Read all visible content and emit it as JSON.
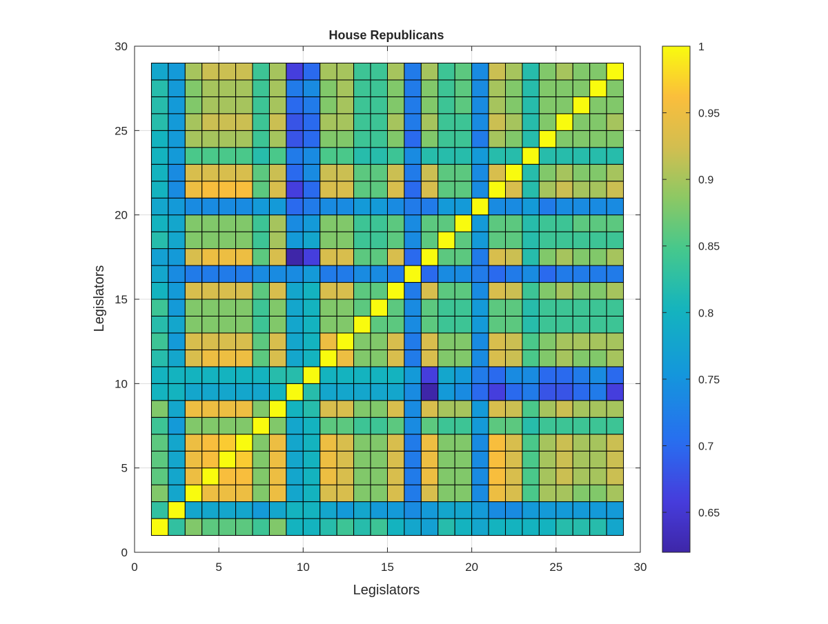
{
  "chart_data": {
    "type": "heatmap",
    "title": "House Republicans",
    "xlabel": "Legislators",
    "ylabel": "Legislators",
    "xlim": [
      0,
      30
    ],
    "ylim": [
      0,
      30
    ],
    "xticks": [
      "0",
      "5",
      "10",
      "15",
      "20",
      "25",
      "30"
    ],
    "yticks": [
      "0",
      "5",
      "10",
      "15",
      "20",
      "25",
      "30"
    ],
    "grid": true,
    "colormap": "parula",
    "colorbar": {
      "range": [
        0.62,
        1.0
      ],
      "ticks": [
        "0.65",
        "0.7",
        "0.75",
        "0.8",
        "0.85",
        "0.9",
        "0.95",
        "1"
      ]
    },
    "n": 28,
    "cells_note_omitted": true,
    "matrix": [
      [
        1.0,
        0.83,
        0.88,
        0.86,
        0.86,
        0.86,
        0.84,
        0.88,
        0.8,
        0.8,
        0.82,
        0.84,
        0.82,
        0.84,
        0.8,
        0.78,
        0.77,
        0.82,
        0.8,
        0.78,
        0.8,
        0.8,
        0.8,
        0.8,
        0.82,
        0.82,
        0.82,
        0.78
      ],
      [
        0.83,
        1.0,
        0.78,
        0.78,
        0.78,
        0.78,
        0.76,
        0.78,
        0.8,
        0.8,
        0.78,
        0.76,
        0.78,
        0.76,
        0.76,
        0.74,
        0.76,
        0.78,
        0.78,
        0.76,
        0.74,
        0.74,
        0.76,
        0.76,
        0.76,
        0.76,
        0.76,
        0.76
      ],
      [
        0.88,
        0.78,
        1.0,
        0.95,
        0.95,
        0.95,
        0.88,
        0.95,
        0.78,
        0.8,
        0.93,
        0.93,
        0.88,
        0.88,
        0.93,
        0.72,
        0.93,
        0.88,
        0.88,
        0.74,
        0.95,
        0.93,
        0.85,
        0.9,
        0.9,
        0.88,
        0.88,
        0.9
      ],
      [
        0.86,
        0.78,
        0.95,
        1.0,
        0.96,
        0.96,
        0.88,
        0.95,
        0.78,
        0.8,
        0.95,
        0.93,
        0.88,
        0.88,
        0.93,
        0.72,
        0.95,
        0.88,
        0.88,
        0.74,
        0.96,
        0.93,
        0.85,
        0.9,
        0.92,
        0.9,
        0.9,
        0.92
      ],
      [
        0.86,
        0.78,
        0.95,
        0.96,
        1.0,
        0.97,
        0.88,
        0.95,
        0.78,
        0.8,
        0.95,
        0.93,
        0.88,
        0.88,
        0.93,
        0.72,
        0.95,
        0.88,
        0.88,
        0.74,
        0.96,
        0.93,
        0.85,
        0.9,
        0.92,
        0.9,
        0.9,
        0.92
      ],
      [
        0.86,
        0.78,
        0.95,
        0.96,
        0.97,
        1.0,
        0.88,
        0.95,
        0.78,
        0.8,
        0.95,
        0.93,
        0.88,
        0.88,
        0.93,
        0.72,
        0.95,
        0.88,
        0.88,
        0.74,
        0.96,
        0.93,
        0.85,
        0.9,
        0.92,
        0.9,
        0.9,
        0.92
      ],
      [
        0.84,
        0.76,
        0.88,
        0.88,
        0.88,
        0.88,
        1.0,
        0.88,
        0.78,
        0.8,
        0.86,
        0.86,
        0.84,
        0.84,
        0.86,
        0.74,
        0.86,
        0.84,
        0.84,
        0.76,
        0.86,
        0.86,
        0.82,
        0.84,
        0.84,
        0.84,
        0.84,
        0.84
      ],
      [
        0.88,
        0.78,
        0.95,
        0.95,
        0.95,
        0.95,
        0.88,
        1.0,
        0.8,
        0.82,
        0.93,
        0.93,
        0.88,
        0.88,
        0.93,
        0.74,
        0.93,
        0.9,
        0.9,
        0.76,
        0.93,
        0.92,
        0.85,
        0.9,
        0.92,
        0.9,
        0.9,
        0.9
      ],
      [
        0.8,
        0.8,
        0.78,
        0.78,
        0.78,
        0.78,
        0.78,
        0.8,
        1.0,
        0.82,
        0.78,
        0.78,
        0.78,
        0.78,
        0.78,
        0.74,
        0.62,
        0.76,
        0.74,
        0.7,
        0.66,
        0.7,
        0.72,
        0.68,
        0.68,
        0.7,
        0.72,
        0.66
      ],
      [
        0.8,
        0.8,
        0.8,
        0.8,
        0.8,
        0.8,
        0.8,
        0.82,
        0.82,
        1.0,
        0.8,
        0.8,
        0.8,
        0.8,
        0.8,
        0.76,
        0.66,
        0.78,
        0.76,
        0.72,
        0.7,
        0.74,
        0.74,
        0.7,
        0.7,
        0.72,
        0.74,
        0.7
      ],
      [
        0.82,
        0.78,
        0.93,
        0.95,
        0.95,
        0.95,
        0.86,
        0.93,
        0.78,
        0.8,
        1.0,
        0.95,
        0.88,
        0.88,
        0.93,
        0.72,
        0.93,
        0.88,
        0.88,
        0.74,
        0.93,
        0.92,
        0.85,
        0.88,
        0.9,
        0.88,
        0.88,
        0.9
      ],
      [
        0.84,
        0.76,
        0.93,
        0.93,
        0.93,
        0.93,
        0.86,
        0.93,
        0.78,
        0.8,
        0.95,
        1.0,
        0.88,
        0.88,
        0.93,
        0.72,
        0.93,
        0.88,
        0.88,
        0.74,
        0.93,
        0.92,
        0.85,
        0.88,
        0.9,
        0.9,
        0.9,
        0.9
      ],
      [
        0.82,
        0.78,
        0.88,
        0.88,
        0.88,
        0.88,
        0.84,
        0.88,
        0.78,
        0.8,
        0.88,
        0.88,
        1.0,
        0.86,
        0.86,
        0.74,
        0.86,
        0.84,
        0.84,
        0.76,
        0.86,
        0.86,
        0.82,
        0.84,
        0.84,
        0.84,
        0.84,
        0.84
      ],
      [
        0.84,
        0.76,
        0.88,
        0.88,
        0.88,
        0.88,
        0.84,
        0.88,
        0.78,
        0.8,
        0.88,
        0.88,
        0.86,
        1.0,
        0.86,
        0.74,
        0.86,
        0.84,
        0.84,
        0.76,
        0.86,
        0.86,
        0.82,
        0.84,
        0.84,
        0.84,
        0.84,
        0.84
      ],
      [
        0.8,
        0.76,
        0.93,
        0.93,
        0.93,
        0.93,
        0.86,
        0.93,
        0.78,
        0.8,
        0.93,
        0.93,
        0.86,
        0.86,
        1.0,
        0.72,
        0.93,
        0.86,
        0.86,
        0.74,
        0.93,
        0.92,
        0.84,
        0.88,
        0.9,
        0.88,
        0.88,
        0.9
      ],
      [
        0.78,
        0.74,
        0.72,
        0.72,
        0.72,
        0.72,
        0.74,
        0.74,
        0.74,
        0.76,
        0.72,
        0.72,
        0.74,
        0.74,
        0.72,
        1.0,
        0.7,
        0.74,
        0.74,
        0.72,
        0.7,
        0.72,
        0.74,
        0.7,
        0.72,
        0.72,
        0.72,
        0.72
      ],
      [
        0.77,
        0.76,
        0.93,
        0.95,
        0.95,
        0.95,
        0.86,
        0.93,
        0.62,
        0.66,
        0.93,
        0.93,
        0.86,
        0.86,
        0.93,
        0.7,
        1.0,
        0.86,
        0.86,
        0.72,
        0.93,
        0.92,
        0.82,
        0.88,
        0.9,
        0.88,
        0.88,
        0.9
      ],
      [
        0.82,
        0.78,
        0.88,
        0.88,
        0.88,
        0.88,
        0.84,
        0.9,
        0.76,
        0.78,
        0.88,
        0.88,
        0.84,
        0.84,
        0.86,
        0.74,
        0.86,
        1.0,
        0.86,
        0.76,
        0.86,
        0.86,
        0.82,
        0.84,
        0.84,
        0.84,
        0.84,
        0.84
      ],
      [
        0.8,
        0.78,
        0.88,
        0.88,
        0.88,
        0.88,
        0.84,
        0.9,
        0.74,
        0.76,
        0.88,
        0.88,
        0.84,
        0.84,
        0.86,
        0.74,
        0.86,
        0.86,
        1.0,
        0.76,
        0.86,
        0.86,
        0.82,
        0.84,
        0.84,
        0.86,
        0.86,
        0.86
      ],
      [
        0.78,
        0.76,
        0.74,
        0.74,
        0.74,
        0.74,
        0.76,
        0.76,
        0.7,
        0.72,
        0.74,
        0.74,
        0.76,
        0.76,
        0.74,
        0.72,
        0.72,
        0.76,
        0.76,
        1.0,
        0.74,
        0.74,
        0.76,
        0.72,
        0.74,
        0.74,
        0.74,
        0.74
      ],
      [
        0.8,
        0.74,
        0.95,
        0.96,
        0.96,
        0.96,
        0.86,
        0.93,
        0.66,
        0.7,
        0.93,
        0.93,
        0.86,
        0.86,
        0.93,
        0.7,
        0.93,
        0.86,
        0.86,
        0.74,
        1.0,
        0.93,
        0.82,
        0.9,
        0.92,
        0.9,
        0.9,
        0.92
      ],
      [
        0.8,
        0.74,
        0.93,
        0.93,
        0.93,
        0.93,
        0.86,
        0.92,
        0.7,
        0.74,
        0.92,
        0.92,
        0.86,
        0.86,
        0.92,
        0.72,
        0.92,
        0.86,
        0.86,
        0.74,
        0.93,
        1.0,
        0.82,
        0.88,
        0.9,
        0.88,
        0.88,
        0.9
      ],
      [
        0.8,
        0.76,
        0.85,
        0.85,
        0.85,
        0.85,
        0.82,
        0.85,
        0.72,
        0.74,
        0.85,
        0.85,
        0.82,
        0.82,
        0.84,
        0.74,
        0.82,
        0.82,
        0.82,
        0.76,
        0.82,
        0.82,
        1.0,
        0.82,
        0.82,
        0.82,
        0.82,
        0.82
      ],
      [
        0.8,
        0.76,
        0.9,
        0.9,
        0.9,
        0.9,
        0.84,
        0.9,
        0.68,
        0.7,
        0.88,
        0.88,
        0.84,
        0.84,
        0.88,
        0.7,
        0.88,
        0.84,
        0.84,
        0.72,
        0.9,
        0.88,
        0.82,
        1.0,
        0.88,
        0.88,
        0.88,
        0.88
      ],
      [
        0.82,
        0.76,
        0.9,
        0.92,
        0.92,
        0.92,
        0.84,
        0.92,
        0.68,
        0.7,
        0.9,
        0.9,
        0.84,
        0.84,
        0.9,
        0.72,
        0.9,
        0.84,
        0.84,
        0.74,
        0.92,
        0.9,
        0.82,
        0.88,
        1.0,
        0.88,
        0.88,
        0.9
      ],
      [
        0.82,
        0.76,
        0.88,
        0.9,
        0.9,
        0.9,
        0.84,
        0.9,
        0.7,
        0.72,
        0.88,
        0.9,
        0.84,
        0.84,
        0.88,
        0.72,
        0.88,
        0.84,
        0.86,
        0.74,
        0.9,
        0.88,
        0.82,
        0.88,
        0.88,
        1.0,
        0.88,
        0.88
      ],
      [
        0.82,
        0.76,
        0.88,
        0.9,
        0.9,
        0.9,
        0.84,
        0.9,
        0.72,
        0.74,
        0.88,
        0.9,
        0.84,
        0.84,
        0.88,
        0.72,
        0.88,
        0.84,
        0.86,
        0.74,
        0.9,
        0.88,
        0.82,
        0.88,
        0.88,
        0.88,
        1.0,
        0.88
      ],
      [
        0.78,
        0.76,
        0.9,
        0.92,
        0.92,
        0.92,
        0.84,
        0.9,
        0.66,
        0.7,
        0.9,
        0.9,
        0.84,
        0.84,
        0.9,
        0.72,
        0.9,
        0.84,
        0.86,
        0.74,
        0.92,
        0.9,
        0.82,
        0.88,
        0.9,
        0.88,
        0.88,
        1.0
      ]
    ]
  }
}
